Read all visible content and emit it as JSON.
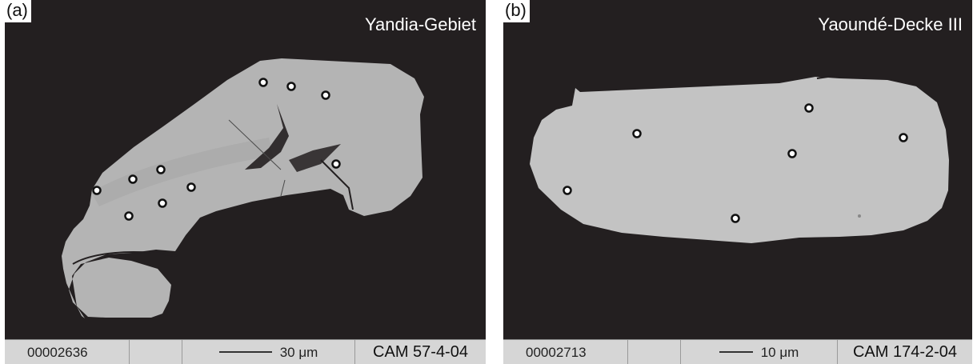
{
  "panels": [
    {
      "label": "(a)",
      "title": "Yandia-Gebiet",
      "databar": {
        "id": "00002636",
        "scale": "30 μm",
        "sample": "CAM 57-4-04"
      }
    },
    {
      "label": "(b)",
      "title": "Yaoundé-Decke III",
      "databar": {
        "id": "00002713",
        "scale": "10 μm",
        "sample": "CAM 174-2-04"
      }
    }
  ],
  "colors": {
    "background": "#231f20",
    "grain": "#b3b3b3",
    "databar": "#d6d6d6"
  }
}
